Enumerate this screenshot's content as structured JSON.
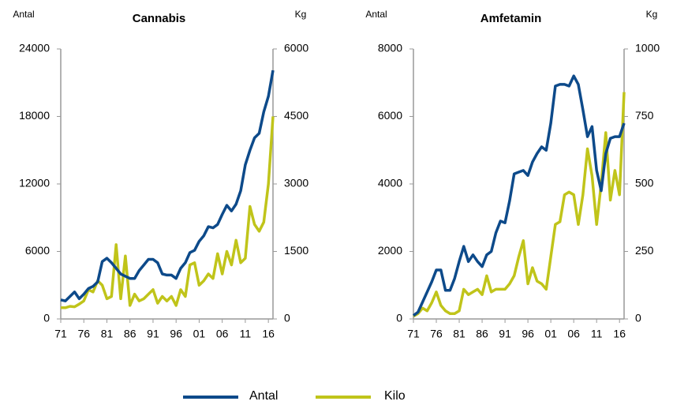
{
  "chart_data": [
    {
      "type": "line",
      "title": "Cannabis",
      "ylabel": "Antal",
      "y2label": "Kg",
      "categories": [
        "71",
        null,
        null,
        null,
        null,
        "76",
        null,
        null,
        null,
        null,
        "81",
        null,
        null,
        null,
        null,
        "86",
        null,
        null,
        null,
        null,
        "91",
        null,
        null,
        null,
        null,
        "96",
        null,
        null,
        null,
        null,
        "01",
        null,
        null,
        null,
        null,
        "06",
        null,
        null,
        null,
        null,
        "11",
        null,
        null,
        null,
        null,
        "16",
        null
      ],
      "series": [
        {
          "name": "Antal",
          "color": "#0d4a8a",
          "values": [
            1700,
            1600,
            2000,
            2400,
            1800,
            2200,
            2700,
            2900,
            3300,
            5100,
            5400,
            5000,
            4500,
            4000,
            3800,
            3600,
            3600,
            4300,
            4800,
            5300,
            5300,
            5000,
            4000,
            3900,
            3900,
            3600,
            4500,
            5000,
            5900,
            6100,
            6900,
            7400,
            8200,
            8100,
            8400,
            9300,
            10100,
            9600,
            10200,
            11400,
            13700,
            15000,
            16100,
            16500,
            18400,
            19800,
            22100
          ]
        },
        {
          "name": "Kilo",
          "color": "#c0c41a",
          "axis": "y2",
          "values": [
            250,
            250,
            280,
            270,
            330,
            400,
            650,
            600,
            850,
            750,
            450,
            500,
            1650,
            450,
            1400,
            300,
            550,
            400,
            450,
            550,
            650,
            350,
            500,
            400,
            500,
            300,
            650,
            500,
            1200,
            1250,
            750,
            850,
            1000,
            900,
            1450,
            1000,
            1500,
            1200,
            1750,
            1250,
            1350,
            2500,
            2100,
            1950,
            2150,
            3000,
            4500
          ]
        }
      ],
      "ylim": [
        0,
        24000
      ],
      "yticks": [
        0,
        6000,
        12000,
        18000,
        24000
      ],
      "y2lim": [
        0,
        6000
      ],
      "y2ticks": [
        0,
        1500,
        3000,
        4500,
        6000
      ]
    },
    {
      "type": "line",
      "title": "Amfetamin",
      "ylabel": "Antal",
      "y2label": "Kg",
      "categories": [
        "71",
        null,
        null,
        null,
        null,
        "76",
        null,
        null,
        null,
        null,
        "81",
        null,
        null,
        null,
        null,
        "86",
        null,
        null,
        null,
        null,
        "91",
        null,
        null,
        null,
        null,
        "96",
        null,
        null,
        null,
        null,
        "01",
        null,
        null,
        null,
        null,
        "06",
        null,
        null,
        null,
        null,
        "11",
        null,
        null,
        null,
        null,
        "16",
        null
      ],
      "series": [
        {
          "name": "Antal",
          "color": "#0d4a8a",
          "values": [
            100,
            200,
            500,
            800,
            1100,
            1450,
            1450,
            850,
            850,
            1200,
            1700,
            2150,
            1700,
            1900,
            1700,
            1550,
            1900,
            2000,
            2550,
            2900,
            2850,
            3500,
            4300,
            4350,
            4400,
            4250,
            4650,
            4900,
            5100,
            5000,
            5800,
            6900,
            6950,
            6950,
            6900,
            7200,
            6950,
            6200,
            5400,
            5700,
            4400,
            3800,
            4900,
            5350,
            5400,
            5400,
            5800
          ]
        },
        {
          "name": "Kilo",
          "color": "#c0c41a",
          "axis": "y2",
          "values": [
            10,
            20,
            40,
            30,
            60,
            100,
            50,
            30,
            20,
            20,
            30,
            110,
            90,
            100,
            110,
            90,
            160,
            100,
            110,
            110,
            110,
            130,
            160,
            230,
            290,
            130,
            190,
            140,
            130,
            110,
            230,
            350,
            360,
            460,
            470,
            460,
            350,
            460,
            630,
            530,
            350,
            500,
            690,
            440,
            550,
            460,
            840
          ]
        }
      ],
      "ylim": [
        0,
        8000
      ],
      "yticks": [
        0,
        2000,
        4000,
        6000,
        8000
      ],
      "y2lim": [
        0,
        1000
      ],
      "y2ticks": [
        0,
        250,
        500,
        750,
        1000
      ]
    }
  ]
}
